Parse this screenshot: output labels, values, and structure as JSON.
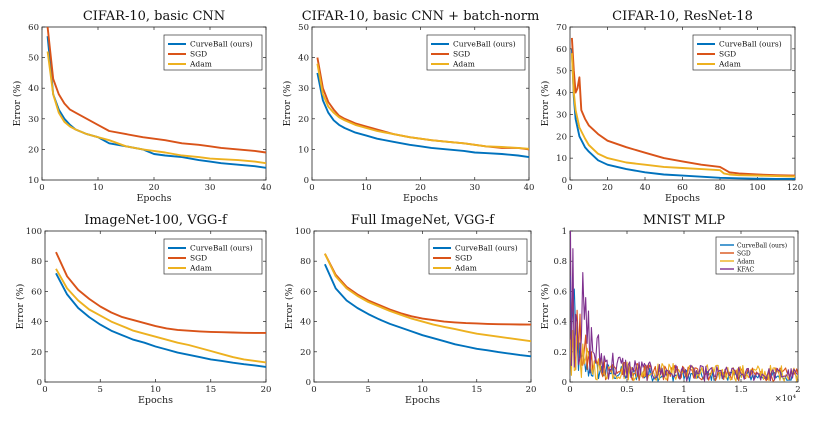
{
  "colors": {
    "curveball": "#0072BD",
    "sgd": "#D95319",
    "adam": "#EDB120",
    "kfac": "#7E2F8E"
  },
  "chart_data": [
    {
      "type": "line",
      "title": "CIFAR-10, basic CNN",
      "xlabel": "Epochs",
      "ylabel": "Error (%)",
      "xlim": [
        0,
        40
      ],
      "ylim": [
        10,
        60
      ],
      "xticks": [
        0,
        10,
        20,
        30,
        40
      ],
      "yticks": [
        10,
        20,
        30,
        40,
        50,
        60
      ],
      "legend": "top-right",
      "series": [
        {
          "name": "CurveBall (ours)",
          "color_key": "curveball",
          "x": [
            1,
            2,
            3,
            4,
            5,
            6,
            8,
            10,
            12,
            15,
            18,
            20,
            22,
            25,
            28,
            30,
            32,
            35,
            38,
            40
          ],
          "y": [
            57,
            38,
            33,
            30,
            28,
            26.5,
            25,
            24,
            22,
            21,
            20,
            18.5,
            18,
            17.5,
            16.5,
            16,
            15.5,
            15,
            14.5,
            14
          ]
        },
        {
          "name": "SGD",
          "color_key": "sgd",
          "x": [
            1,
            2,
            3,
            4,
            5,
            6,
            8,
            10,
            12,
            15,
            18,
            20,
            22,
            25,
            28,
            30,
            32,
            35,
            38,
            40
          ],
          "y": [
            60,
            43,
            38,
            35,
            33,
            32,
            30,
            28,
            26,
            25,
            24,
            23.5,
            23,
            22,
            21.5,
            21,
            20.5,
            20,
            19.5,
            19
          ]
        },
        {
          "name": "Adam",
          "color_key": "adam",
          "x": [
            1,
            2,
            3,
            4,
            5,
            6,
            8,
            10,
            12,
            15,
            18,
            20,
            22,
            25,
            28,
            30,
            32,
            35,
            38,
            40
          ],
          "y": [
            52,
            38,
            32,
            29,
            27.5,
            26.5,
            25,
            24,
            23,
            21,
            20,
            19.5,
            19,
            18,
            17.5,
            17,
            16.8,
            16.5,
            16,
            15.5
          ]
        }
      ]
    },
    {
      "type": "line",
      "title": "CIFAR-10, basic CNN + batch-norm",
      "xlabel": "Epochs",
      "ylabel": "Error (%)",
      "xlim": [
        0,
        40
      ],
      "ylim": [
        0,
        50
      ],
      "xticks": [
        0,
        10,
        20,
        30,
        40
      ],
      "yticks": [
        0,
        10,
        20,
        30,
        40,
        50
      ],
      "legend": "top-right",
      "series": [
        {
          "name": "CurveBall (ours)",
          "color_key": "curveball",
          "x": [
            1,
            2,
            3,
            4,
            5,
            6,
            8,
            10,
            12,
            15,
            18,
            20,
            22,
            25,
            28,
            30,
            32,
            35,
            38,
            40
          ],
          "y": [
            35,
            26,
            22,
            19.5,
            18,
            17,
            15.5,
            14.5,
            13.5,
            12.5,
            11.5,
            11,
            10.5,
            10,
            9.5,
            9,
            8.8,
            8.5,
            8,
            7.5
          ]
        },
        {
          "name": "SGD",
          "color_key": "sgd",
          "x": [
            1,
            2,
            3,
            4,
            5,
            6,
            8,
            10,
            12,
            15,
            18,
            20,
            22,
            25,
            28,
            30,
            32,
            35,
            38,
            40
          ],
          "y": [
            40,
            30,
            25.5,
            23,
            21,
            20,
            18.5,
            17.5,
            16.5,
            15,
            14,
            13.5,
            13,
            12.5,
            12,
            11.5,
            11,
            10.5,
            10.5,
            10
          ]
        },
        {
          "name": "Adam",
          "color_key": "adam",
          "x": [
            1,
            2,
            3,
            4,
            5,
            6,
            8,
            10,
            12,
            15,
            18,
            20,
            22,
            25,
            28,
            30,
            32,
            35,
            38,
            40
          ],
          "y": [
            38,
            28,
            24,
            22,
            20.5,
            19.5,
            18,
            17,
            16,
            15,
            14,
            13.5,
            13,
            12.5,
            12,
            11.5,
            11,
            10.8,
            10.5,
            10.2
          ]
        }
      ]
    },
    {
      "type": "line",
      "title": "CIFAR-10, ResNet-18",
      "xlabel": "Epochs",
      "ylabel": "Error (%)",
      "xlim": [
        0,
        120
      ],
      "ylim": [
        0,
        70
      ],
      "xticks": [
        0,
        20,
        40,
        60,
        80,
        100,
        120
      ],
      "yticks": [
        0,
        10,
        20,
        30,
        40,
        50,
        60,
        70
      ],
      "legend": "top-right",
      "series": [
        {
          "name": "CurveBall (ours)",
          "color_key": "curveball",
          "x": [
            1,
            2,
            3,
            5,
            8,
            10,
            15,
            20,
            30,
            40,
            50,
            60,
            70,
            80,
            90,
            100,
            110,
            120
          ],
          "y": [
            60,
            38,
            28,
            20,
            15,
            13,
            9,
            7,
            5,
            3.5,
            2.5,
            2,
            1.5,
            1,
            0.8,
            0.6,
            0.5,
            0.5
          ]
        },
        {
          "name": "SGD",
          "color_key": "sgd",
          "x": [
            1,
            2,
            3,
            4,
            5,
            6,
            8,
            10,
            15,
            20,
            30,
            40,
            50,
            60,
            70,
            80,
            82,
            85,
            90,
            100,
            110,
            120
          ],
          "y": [
            65,
            50,
            40,
            42,
            47,
            32,
            28,
            25,
            21,
            18,
            15,
            12.5,
            10,
            8.5,
            7,
            6,
            5,
            3.5,
            3,
            2.5,
            2.2,
            2
          ]
        },
        {
          "name": "Adam",
          "color_key": "adam",
          "x": [
            1,
            2,
            3,
            5,
            8,
            10,
            15,
            20,
            30,
            40,
            50,
            60,
            70,
            80,
            82,
            85,
            90,
            100,
            110,
            120
          ],
          "y": [
            58,
            40,
            32,
            24,
            19,
            16,
            12,
            10,
            8,
            7,
            6,
            5.5,
            5,
            4.5,
            3,
            2.5,
            2.2,
            2,
            1.8,
            1.6
          ]
        }
      ]
    },
    {
      "type": "line",
      "title": "ImageNet-100, VGG-f",
      "xlabel": "Epochs",
      "ylabel": "Error (%)",
      "xlim": [
        0,
        20
      ],
      "ylim": [
        0,
        100
      ],
      "xticks": [
        0,
        5,
        10,
        15,
        20
      ],
      "yticks": [
        0,
        20,
        40,
        60,
        80,
        100
      ],
      "legend": "top-right",
      "series": [
        {
          "name": "CurveBall (ours)",
          "color_key": "curveball",
          "x": [
            1,
            2,
            3,
            4,
            5,
            6,
            7,
            8,
            9,
            10,
            11,
            12,
            13,
            14,
            15,
            16,
            17,
            18,
            19,
            20
          ],
          "y": [
            72,
            58,
            49,
            43,
            38,
            34,
            31,
            28,
            26,
            23.5,
            21.5,
            19.5,
            18,
            16.5,
            15,
            14,
            12.8,
            11.8,
            11,
            10
          ]
        },
        {
          "name": "SGD",
          "color_key": "sgd",
          "x": [
            1,
            2,
            3,
            4,
            5,
            6,
            7,
            8,
            9,
            10,
            11,
            12,
            13,
            14,
            15,
            16,
            17,
            18,
            19,
            20
          ],
          "y": [
            86,
            70,
            61,
            55,
            50,
            46,
            43,
            41,
            39,
            37,
            35.5,
            34.5,
            34,
            33.5,
            33.2,
            33,
            32.8,
            32.6,
            32.5,
            32.5
          ]
        },
        {
          "name": "Adam",
          "color_key": "adam",
          "x": [
            1,
            2,
            3,
            4,
            5,
            6,
            7,
            8,
            9,
            10,
            11,
            12,
            13,
            14,
            15,
            16,
            17,
            18,
            19,
            20
          ],
          "y": [
            75,
            62,
            54,
            48,
            44,
            40,
            37,
            34,
            32,
            30,
            28,
            26,
            24.5,
            22.5,
            20.5,
            18.5,
            16.5,
            15,
            14,
            13
          ]
        }
      ]
    },
    {
      "type": "line",
      "title": "Full ImageNet, VGG-f",
      "xlabel": "Epochs",
      "ylabel": "Error (%)",
      "xlim": [
        0,
        20
      ],
      "ylim": [
        0,
        100
      ],
      "xticks": [
        0,
        5,
        10,
        15,
        20
      ],
      "yticks": [
        0,
        20,
        40,
        60,
        80,
        100
      ],
      "legend": "top-right",
      "series": [
        {
          "name": "CurveBall (ours)",
          "color_key": "curveball",
          "x": [
            1,
            2,
            3,
            4,
            5,
            6,
            7,
            8,
            9,
            10,
            11,
            12,
            13,
            14,
            15,
            16,
            17,
            18,
            19,
            20
          ],
          "y": [
            78,
            62,
            54,
            49,
            45,
            41.5,
            38.5,
            36,
            33.5,
            31,
            29,
            27,
            25,
            23.5,
            22,
            21,
            19.8,
            18.8,
            17.8,
            17
          ]
        },
        {
          "name": "SGD",
          "color_key": "sgd",
          "x": [
            1,
            2,
            3,
            4,
            5,
            6,
            7,
            8,
            9,
            10,
            11,
            12,
            13,
            14,
            15,
            16,
            17,
            18,
            19,
            20
          ],
          "y": [
            85,
            71,
            63,
            58,
            54,
            51,
            48,
            45.5,
            43.5,
            42,
            41,
            40,
            39.5,
            39,
            38.8,
            38.5,
            38.3,
            38.2,
            38.1,
            38
          ]
        },
        {
          "name": "Adam",
          "color_key": "adam",
          "x": [
            1,
            2,
            3,
            4,
            5,
            6,
            7,
            8,
            9,
            10,
            11,
            12,
            13,
            14,
            15,
            16,
            17,
            18,
            19,
            20
          ],
          "y": [
            85,
            70,
            62,
            57,
            53,
            50,
            47,
            44.5,
            42,
            40,
            38,
            36.5,
            35,
            33.5,
            32,
            31,
            30,
            29,
            28,
            27
          ]
        }
      ]
    },
    {
      "type": "line",
      "title": "MNIST MLP",
      "xlabel": "Iteration",
      "ylabel": "Error (%)",
      "xlim": [
        0,
        2
      ],
      "ylim": [
        0,
        1
      ],
      "xticks": [
        0,
        0.5,
        1,
        1.5,
        2
      ],
      "xtick_labels": [
        "0",
        "0.5",
        "1",
        "1.5",
        "2"
      ],
      "yticks": [
        0,
        0.2,
        0.4,
        0.6,
        0.8,
        1
      ],
      "x_multiplier_label": "×10⁴",
      "legend": "top-right",
      "series": [
        {
          "name": "CurveBall (ours)",
          "color_key": "curveball",
          "noisy": true,
          "x": [
            0,
            0.05,
            0.1,
            0.15,
            0.2,
            0.3,
            0.4,
            0.5,
            0.7,
            1.0,
            1.3,
            1.6,
            2.0
          ],
          "y": [
            0.55,
            0.25,
            0.12,
            0.09,
            0.08,
            0.07,
            0.06,
            0.05,
            0.05,
            0.045,
            0.04,
            0.04,
            0.04
          ]
        },
        {
          "name": "SGD",
          "color_key": "sgd",
          "noisy": true,
          "x": [
            0,
            0.05,
            0.1,
            0.15,
            0.2,
            0.3,
            0.4,
            0.5,
            0.7,
            1.0,
            1.3,
            1.6,
            2.0
          ],
          "y": [
            0.4,
            0.3,
            0.22,
            0.15,
            0.12,
            0.1,
            0.08,
            0.07,
            0.06,
            0.06,
            0.055,
            0.05,
            0.05
          ]
        },
        {
          "name": "Adam",
          "color_key": "adam",
          "noisy": true,
          "x": [
            0,
            0.05,
            0.1,
            0.15,
            0.2,
            0.3,
            0.4,
            0.5,
            0.7,
            1.0,
            1.3,
            1.6,
            2.0
          ],
          "y": [
            0.3,
            0.22,
            0.15,
            0.12,
            0.1,
            0.09,
            0.08,
            0.075,
            0.07,
            0.065,
            0.06,
            0.06,
            0.06
          ]
        },
        {
          "name": "KFAC",
          "color_key": "kfac",
          "noisy": true,
          "x": [
            0,
            0.05,
            0.1,
            0.15,
            0.2,
            0.25,
            0.3,
            0.4,
            0.5,
            0.7,
            1.0,
            1.3,
            1.6,
            2.0
          ],
          "y": [
            0.9,
            0.6,
            0.42,
            0.3,
            0.22,
            0.18,
            0.14,
            0.11,
            0.09,
            0.07,
            0.06,
            0.055,
            0.05,
            0.05
          ]
        }
      ]
    }
  ]
}
